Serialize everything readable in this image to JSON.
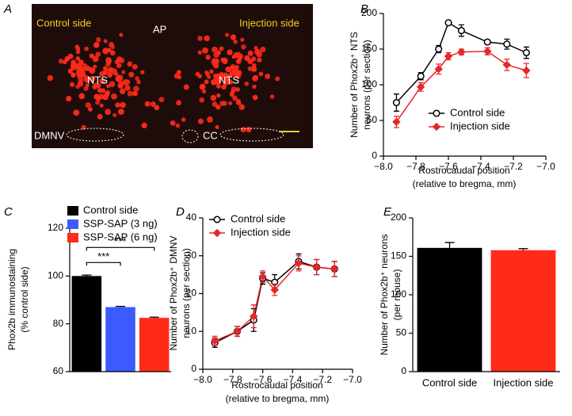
{
  "image_panel": {
    "panel_label": "A",
    "labels": [
      "Control side",
      "Injection side",
      "AP",
      "NTS",
      "NTS",
      "DMNV",
      "CC"
    ]
  },
  "chart_data": [
    {
      "type": "line",
      "panel_label": "B",
      "ylabel": [
        "Number of Phox2b⁺ NTS",
        "neurons (per section)"
      ],
      "xlabel": [
        "Rostrocaudal position",
        "(relative to bregma, mm)"
      ],
      "x": [
        -7.92,
        -7.77,
        -7.66,
        -7.6,
        -7.52,
        -7.36,
        -7.24,
        -7.12
      ],
      "series": [
        {
          "name": "Control side",
          "color": "#000000",
          "marker": "open-circle",
          "values": [
            75,
            112,
            150,
            187,
            176,
            160,
            157,
            145
          ],
          "errors": [
            12,
            5,
            5,
            2,
            8,
            3,
            7,
            8
          ]
        },
        {
          "name": "Injection side",
          "color": "#e8262a",
          "marker": "diamond",
          "values": [
            48,
            97,
            122,
            140,
            146,
            147,
            128,
            120
          ],
          "errors": [
            8,
            6,
            7,
            5,
            4,
            5,
            8,
            10
          ]
        }
      ],
      "xlim": [
        -8,
        -7
      ],
      "xticks": [
        {
          "value": -8,
          "label": "−8.0"
        },
        {
          "value": -7.8,
          "label": "−7.8"
        },
        {
          "value": -7.6,
          "label": "−7.6"
        },
        {
          "value": -7.4,
          "label": "−7.4"
        },
        {
          "value": -7.2,
          "label": "−7.2"
        },
        {
          "value": -7,
          "label": "−7.0"
        }
      ],
      "ylim": [
        0,
        200
      ],
      "yticks": [
        0,
        50,
        100,
        150,
        200
      ],
      "legend": "lower right"
    },
    {
      "type": "bar",
      "panel_label": "C",
      "ylabel": [
        "Phox2b immunostaining",
        "(% control side)"
      ],
      "categories": [
        "Control side",
        "SSP-SAP (3 ng)",
        "SSP-SAP (6 ng)"
      ],
      "values": [
        100,
        87,
        82.5
      ],
      "errors": [
        0.4,
        0.3,
        0.3
      ],
      "colors": [
        "#000000",
        "#3b5bff",
        "#ff2a1a"
      ],
      "ylim": [
        60,
        120
      ],
      "yticks": [
        60,
        80,
        100,
        120
      ],
      "legend": "upper left",
      "annotations": [
        "***",
        "***"
      ]
    },
    {
      "type": "line",
      "panel_label": "D",
      "ylabel": [
        "Number of Phox2b⁺ DMNV",
        "neurons (per section)"
      ],
      "xlabel": [
        "Rostrocaudal position",
        "(relative to bregma, mm)"
      ],
      "x": [
        -7.92,
        -7.77,
        -7.66,
        -7.6,
        -7.52,
        -7.36,
        -7.24,
        -7.12
      ],
      "series": [
        {
          "name": "Control side",
          "color": "#000000",
          "marker": "open-circle",
          "values": [
            7,
            10,
            13,
            24,
            23,
            28.5,
            27,
            26.5
          ],
          "errors": [
            1.2,
            1.3,
            3,
            1.5,
            2,
            2,
            2,
            2
          ]
        },
        {
          "name": "Injection side",
          "color": "#e8262a",
          "marker": "diamond",
          "values": [
            7.5,
            10,
            14,
            24.5,
            21,
            28,
            27,
            26.5
          ],
          "errors": [
            1.2,
            1.3,
            3,
            1.5,
            1.5,
            2,
            2,
            2
          ]
        }
      ],
      "xlim": [
        -8,
        -7
      ],
      "xticks": [
        {
          "value": -8,
          "label": "−8.0"
        },
        {
          "value": -7.8,
          "label": "−7.8"
        },
        {
          "value": -7.6,
          "label": "−7.6"
        },
        {
          "value": -7.4,
          "label": "−7.4"
        },
        {
          "value": -7.2,
          "label": "−7.2"
        },
        {
          "value": -7,
          "label": "−7.0"
        }
      ],
      "ylim": [
        0,
        40
      ],
      "yticks": [
        0,
        10,
        20,
        30,
        40
      ],
      "legend": "upper left"
    },
    {
      "type": "bar",
      "panel_label": "E",
      "ylabel": [
        "Number of Phox2b⁺ neurons",
        "(per mouse)"
      ],
      "categories": [
        "Control side",
        "Injection side"
      ],
      "values": [
        161,
        158
      ],
      "errors": [
        7,
        2
      ],
      "colors": [
        "#000000",
        "#ff2a1a"
      ],
      "ylim": [
        0,
        200
      ],
      "yticks": [
        0,
        50,
        100,
        150,
        200
      ]
    }
  ]
}
